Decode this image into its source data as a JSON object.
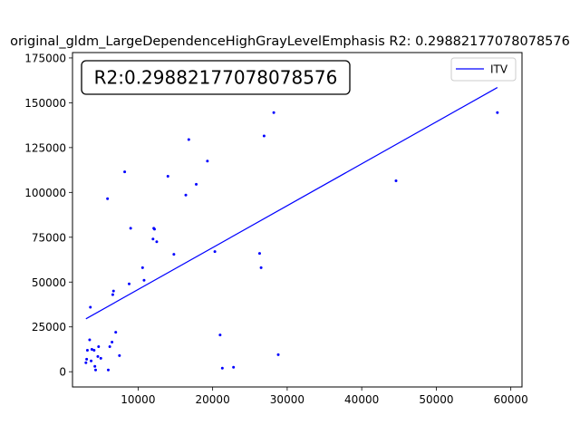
{
  "chart_data": {
    "type": "scatter",
    "title": "original_gldm_LargeDependenceHighGrayLevelEmphasis R2: 0.29882177078078576",
    "annotation": "R2:0.29882177078078576",
    "xlabel": "",
    "ylabel": "",
    "xlim": [
      1200,
      61500
    ],
    "ylim": [
      -8500,
      178000
    ],
    "xticks": [
      10000,
      20000,
      30000,
      40000,
      50000,
      60000
    ],
    "xtick_labels": [
      "10000",
      "20000",
      "30000",
      "40000",
      "50000",
      "60000"
    ],
    "yticks": [
      0,
      25000,
      50000,
      75000,
      100000,
      125000,
      150000,
      175000
    ],
    "ytick_labels": [
      "0",
      "25000",
      "50000",
      "75000",
      "100000",
      "125000",
      "150000",
      "175000"
    ],
    "legend": {
      "placement": "upper-right",
      "entries": [
        "ITV"
      ]
    },
    "colors": {
      "points": "#0000ff",
      "line": "#0000ff",
      "axes": "#000000"
    },
    "fit_line": {
      "name": "ITV",
      "x": [
        3000,
        58200
      ],
      "y": [
        29500,
        158500
      ]
    },
    "points": [
      [
        3000,
        5000
      ],
      [
        3100,
        7000
      ],
      [
        3200,
        12000
      ],
      [
        3500,
        17800
      ],
      [
        3600,
        36000
      ],
      [
        3700,
        6000
      ],
      [
        3800,
        12500
      ],
      [
        4100,
        12000
      ],
      [
        4200,
        3000
      ],
      [
        4300,
        1000
      ],
      [
        4600,
        8500
      ],
      [
        4700,
        14000
      ],
      [
        5000,
        7500
      ],
      [
        5900,
        96500
      ],
      [
        6000,
        1000
      ],
      [
        6200,
        14000
      ],
      [
        6500,
        16500
      ],
      [
        6600,
        43000
      ],
      [
        6700,
        45000
      ],
      [
        7000,
        22000
      ],
      [
        7500,
        9000
      ],
      [
        8200,
        111500
      ],
      [
        8800,
        49000
      ],
      [
        9000,
        80000
      ],
      [
        10600,
        58000
      ],
      [
        10800,
        51000
      ],
      [
        12000,
        74000
      ],
      [
        12100,
        80000
      ],
      [
        12200,
        79500
      ],
      [
        12500,
        72500
      ],
      [
        14000,
        109000
      ],
      [
        14800,
        65500
      ],
      [
        16400,
        98500
      ],
      [
        16800,
        129500
      ],
      [
        17800,
        104500
      ],
      [
        19300,
        117500
      ],
      [
        20300,
        67000
      ],
      [
        21000,
        20500
      ],
      [
        21300,
        2000
      ],
      [
        22800,
        2500
      ],
      [
        26300,
        66000
      ],
      [
        26500,
        58000
      ],
      [
        26900,
        131500
      ],
      [
        28200,
        144500
      ],
      [
        28800,
        9500
      ],
      [
        44600,
        106500
      ],
      [
        58200,
        144500
      ]
    ]
  }
}
